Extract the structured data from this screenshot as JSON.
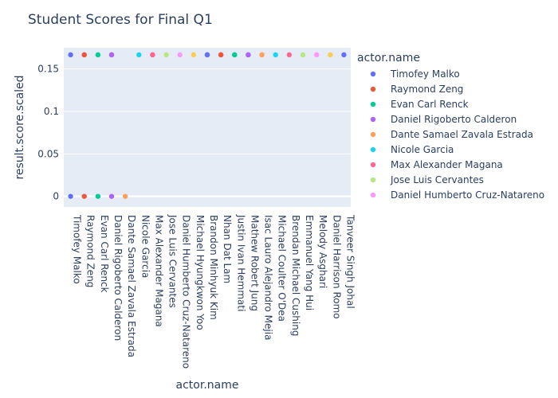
{
  "chart_data": {
    "type": "scatter",
    "title": "Student Scores for Final Q1",
    "xlabel": "actor.name",
    "ylabel": "result.score.scaled",
    "ylim": [
      -0.0125,
      0.175
    ],
    "yticks": [
      0,
      0.05,
      0.1,
      0.15
    ],
    "ytick_labels": [
      "0",
      "0.05",
      "0.1",
      "0.15"
    ],
    "grid": true,
    "legend": {
      "title": "actor.name",
      "placement": "right"
    },
    "categories": [
      "Timofey Malko",
      "Raymond Zeng",
      "Evan Carl Renck",
      "Daniel Rigoberto Calderon",
      "Dante Samael Zavala Estrada",
      "Nicole Garcia",
      "Max Alexander Magana",
      "Jose Luis Cervantes",
      "Daniel Humberto Cruz-Natareno",
      "Michael Hyungkwon Yoo",
      "Brandon Minhyuk Kim",
      "Nhan Dat Lam",
      "Justin Ivan Hemmati",
      "Mathew Robert Jung",
      "Isac Lauro Alejandro Mejia",
      "Michael Coulter O'Dea",
      "Brendan Michael Cushing",
      "Emmanuel Yang Hui",
      "Melody Asghari",
      "Daniel Harrison Romo",
      "Tanveer Singh Johal"
    ],
    "legend_visible": [
      "Timofey Malko",
      "Raymond Zeng",
      "Evan Carl Renck",
      "Daniel Rigoberto Calderon",
      "Dante Samael Zavala Estrada",
      "Nicole Garcia",
      "Max Alexander Magana",
      "Jose Luis Cervantes",
      "Daniel Humberto Cruz-Natareno"
    ],
    "series": [
      {
        "name": "Timofey Malko",
        "color": "#636efa",
        "y": [
          0.1667,
          0
        ]
      },
      {
        "name": "Raymond Zeng",
        "color": "#EF553B",
        "y": [
          0.1667,
          0.1667,
          0
        ]
      },
      {
        "name": "Evan Carl Renck",
        "color": "#00cc96",
        "y": [
          0.1667,
          0
        ]
      },
      {
        "name": "Daniel Rigoberto Calderon",
        "color": "#ab63fa",
        "y": [
          0.1667,
          0.1667,
          0
        ]
      },
      {
        "name": "Dante Samael Zavala Estrada",
        "color": "#FFA15A",
        "y": [
          0
        ]
      },
      {
        "name": "Nicole Garcia",
        "color": "#19d3f3",
        "y": [
          0.1667
        ]
      },
      {
        "name": "Max Alexander Magana",
        "color": "#FF6692",
        "y": [
          0.1667,
          0.1667
        ]
      },
      {
        "name": "Jose Luis Cervantes",
        "color": "#B6E880",
        "y": [
          0.1667
        ]
      },
      {
        "name": "Daniel Humberto Cruz-Natareno",
        "color": "#FF97FF",
        "y": [
          0.1667
        ]
      },
      {
        "name": "Michael Hyungkwon Yoo",
        "color": "#FECB52",
        "y": [
          0.1667
        ]
      },
      {
        "name": "Brandon Minhyuk Kim",
        "color": "#636efa",
        "y": [
          0.1667,
          0.1667
        ]
      },
      {
        "name": "Nhan Dat Lam",
        "color": "#EF553B",
        "y": [
          0.1667,
          0.1667
        ]
      },
      {
        "name": "Justin Ivan Hemmati",
        "color": "#00cc96",
        "y": [
          0.1667,
          0.1667
        ]
      },
      {
        "name": "Mathew Robert Jung",
        "color": "#ab63fa",
        "y": [
          0.1667,
          0.1667
        ]
      },
      {
        "name": "Isac Lauro Alejandro Mejia",
        "color": "#FFA15A",
        "y": [
          0.1667,
          0.1667
        ]
      },
      {
        "name": "Michael Coulter O'Dea",
        "color": "#19d3f3",
        "y": [
          0.1667
        ]
      },
      {
        "name": "Brendan Michael Cushing",
        "color": "#FF6692",
        "y": [
          0.1667
        ]
      },
      {
        "name": "Emmanuel Yang Hui",
        "color": "#B6E880",
        "y": [
          0.1667
        ]
      },
      {
        "name": "Melody Asghari",
        "color": "#FF97FF",
        "y": [
          0.1667,
          0.1667
        ]
      },
      {
        "name": "Daniel Harrison Romo",
        "color": "#FECB52",
        "y": [
          0.1667
        ]
      },
      {
        "name": "Tanveer Singh Johal",
        "color": "#636efa",
        "y": [
          0.1667
        ]
      }
    ]
  }
}
